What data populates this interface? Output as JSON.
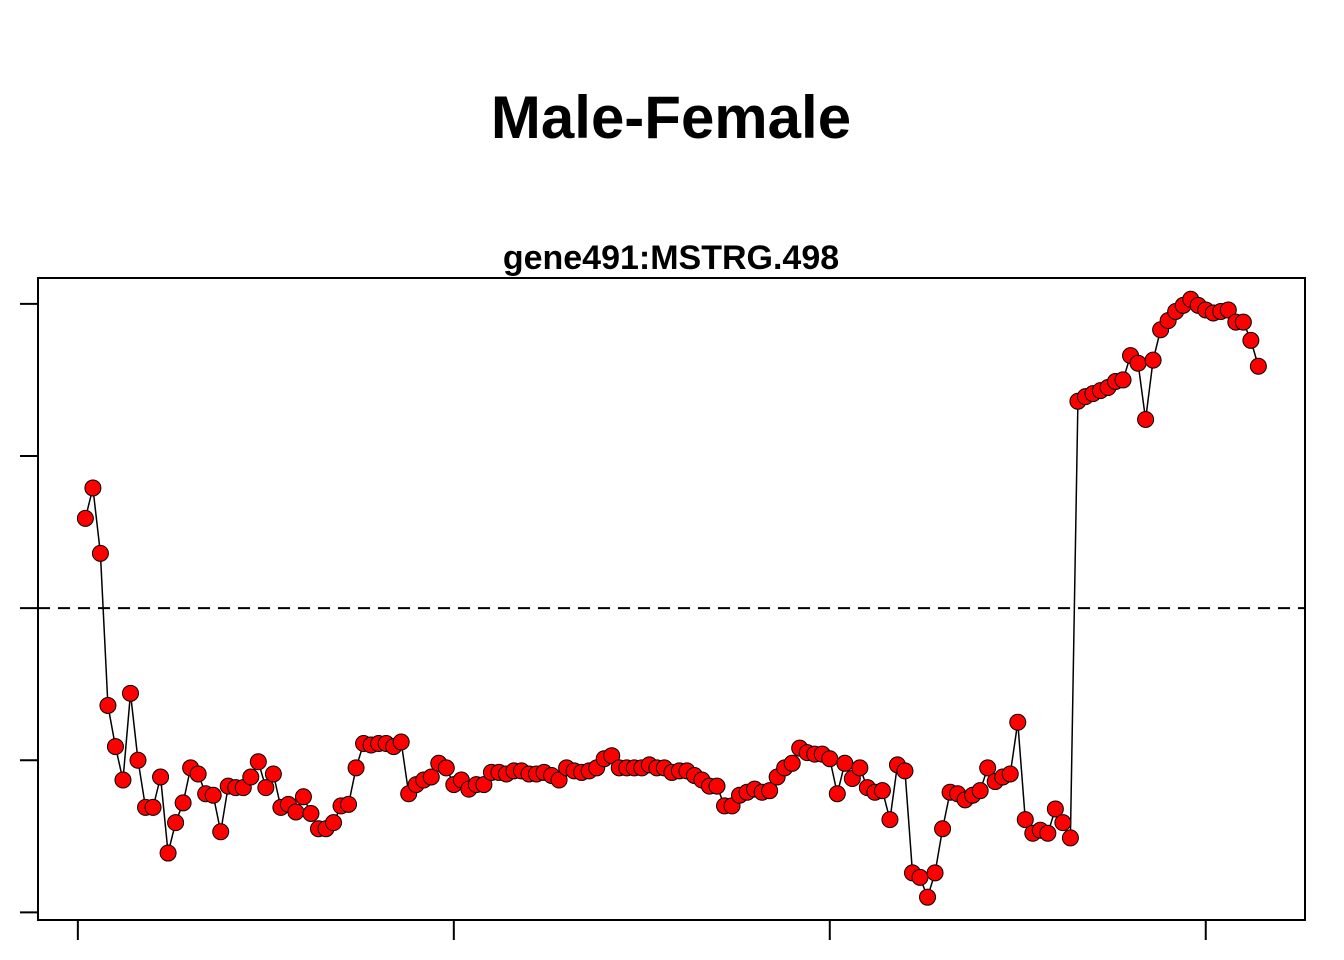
{
  "chart_data": {
    "type": "scatter-line",
    "title": "Male-Female",
    "subtitle": "gene491:MSTRG.498",
    "x": [
      1,
      2,
      3,
      4,
      5,
      6,
      7,
      8,
      9,
      10,
      11,
      12,
      13,
      14,
      15,
      16,
      17,
      18,
      19,
      20,
      21,
      22,
      23,
      24,
      25,
      26,
      27,
      28,
      29,
      30,
      31,
      32,
      33,
      34,
      35,
      36,
      37,
      38,
      39,
      40,
      41,
      42,
      43,
      44,
      45,
      46,
      47,
      48,
      49,
      50,
      51,
      52,
      53,
      54,
      55,
      56,
      57,
      58,
      59,
      60,
      61,
      62,
      63,
      64,
      65,
      66,
      67,
      68,
      69,
      70,
      71,
      72,
      73,
      74,
      75,
      76,
      77,
      78,
      79,
      80,
      81,
      82,
      83,
      84,
      85,
      86,
      87,
      88,
      89,
      90,
      91,
      92,
      93,
      94,
      95,
      96,
      97,
      98,
      99,
      100,
      101,
      102,
      103,
      104,
      105,
      106,
      107,
      108,
      109,
      110,
      111,
      112,
      113,
      114,
      115,
      116,
      117,
      118,
      119,
      120,
      121,
      122,
      123,
      124,
      125,
      126,
      127,
      128,
      129,
      130,
      131,
      132,
      133,
      134,
      135,
      136,
      137,
      138,
      139,
      140,
      141,
      142,
      143,
      144,
      145,
      146,
      147,
      148,
      149,
      150,
      151,
      152,
      153,
      154,
      155,
      156,
      157
    ],
    "values": [
      0.59,
      0.79,
      0.36,
      -0.64,
      -0.91,
      -1.13,
      -0.56,
      -1.0,
      -1.31,
      -1.31,
      -1.11,
      -1.61,
      -1.41,
      -1.28,
      -1.05,
      -1.09,
      -1.22,
      -1.23,
      -1.47,
      -1.17,
      -1.18,
      -1.18,
      -1.11,
      -1.01,
      -1.18,
      -1.09,
      -1.31,
      -1.29,
      -1.34,
      -1.24,
      -1.35,
      -1.45,
      -1.45,
      -1.41,
      -1.3,
      -1.29,
      -1.05,
      -0.89,
      -0.9,
      -0.89,
      -0.89,
      -0.91,
      -0.88,
      -1.22,
      -1.16,
      -1.13,
      -1.11,
      -1.02,
      -1.05,
      -1.16,
      -1.13,
      -1.19,
      -1.16,
      -1.16,
      -1.08,
      -1.08,
      -1.09,
      -1.07,
      -1.07,
      -1.09,
      -1.09,
      -1.08,
      -1.1,
      -1.13,
      -1.05,
      -1.07,
      -1.08,
      -1.07,
      -1.05,
      -0.99,
      -0.97,
      -1.05,
      -1.05,
      -1.05,
      -1.05,
      -1.03,
      -1.05,
      -1.05,
      -1.08,
      -1.07,
      -1.07,
      -1.1,
      -1.13,
      -1.17,
      -1.17,
      -1.3,
      -1.3,
      -1.23,
      -1.21,
      -1.19,
      -1.21,
      -1.2,
      -1.11,
      -1.05,
      -1.02,
      -0.92,
      -0.95,
      -0.96,
      -0.96,
      -0.99,
      -1.22,
      -1.02,
      -1.12,
      -1.05,
      -1.18,
      -1.21,
      -1.2,
      -1.39,
      -1.03,
      -1.07,
      -1.74,
      -1.77,
      -1.9,
      -1.74,
      -1.45,
      -1.21,
      -1.22,
      -1.26,
      -1.23,
      -1.2,
      -1.05,
      -1.14,
      -1.11,
      -1.09,
      -0.75,
      -1.39,
      -1.48,
      -1.46,
      -1.48,
      -1.32,
      -1.41,
      -1.51,
      1.36,
      1.39,
      1.41,
      1.43,
      1.45,
      1.49,
      1.5,
      1.66,
      1.61,
      1.24,
      1.63,
      1.83,
      1.89,
      1.95,
      1.99,
      2.03,
      1.99,
      1.96,
      1.94,
      1.95,
      1.96,
      1.88,
      1.88,
      1.76,
      1.59
    ],
    "color": "#ff0000",
    "line_color": "#000000",
    "xlim": [
      -5.3,
      163.2
    ],
    "xticks": [
      0,
      50,
      100,
      150
    ],
    "ylim": [
      -2.05,
      2.17
    ],
    "yticks": [
      -2,
      -1,
      0,
      1,
      2
    ],
    "hline": 0
  }
}
